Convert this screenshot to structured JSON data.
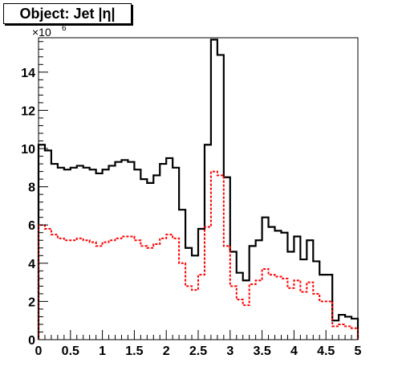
{
  "chart_data": {
    "type": "histogram",
    "title": "Object: Jet |η|",
    "xlabel": "",
    "ylabel": "",
    "xlim": [
      0,
      5
    ],
    "ylim": [
      0,
      15.8
    ],
    "y_multiplier_label": "×10",
    "y_multiplier_exponent": "6",
    "x_ticks": [
      "0",
      "0.5",
      "1",
      "1.5",
      "2",
      "2.5",
      "3",
      "3.5",
      "4",
      "4.5",
      "5"
    ],
    "y_ticks": [
      "0",
      "2",
      "4",
      "6",
      "8",
      "10",
      "12",
      "14"
    ],
    "bin_width": 0.1,
    "series": [
      {
        "style": "solid",
        "color": "#000000",
        "values": [
          10.2,
          9.9,
          9.2,
          9.0,
          8.9,
          9.0,
          9.1,
          9.0,
          8.9,
          8.7,
          8.9,
          9.1,
          9.3,
          9.4,
          9.3,
          8.9,
          8.4,
          8.2,
          8.6,
          9.2,
          9.5,
          9.0,
          6.8,
          4.8,
          4.4,
          5.8,
          10.2,
          15.7,
          14.9,
          8.5,
          4.6,
          3.5,
          3.1,
          4.9,
          5.2,
          6.4,
          5.9,
          5.7,
          5.6,
          4.6,
          5.4,
          4.2,
          5.2,
          4.1,
          3.4,
          3.4,
          1.0,
          1.3,
          1.2,
          1.1
        ]
      },
      {
        "style": "dashed",
        "color": "#ff0000",
        "values": [
          6.0,
          5.8,
          5.5,
          5.3,
          5.2,
          5.2,
          5.3,
          5.2,
          5.1,
          4.9,
          5.1,
          5.2,
          5.3,
          5.4,
          5.4,
          5.2,
          4.9,
          4.8,
          5.0,
          5.3,
          5.5,
          5.3,
          4.0,
          2.8,
          2.6,
          3.4,
          5.9,
          8.8,
          8.6,
          4.9,
          2.8,
          2.1,
          1.8,
          2.9,
          3.1,
          3.7,
          3.4,
          3.3,
          3.2,
          2.7,
          3.1,
          2.5,
          3.0,
          2.4,
          2.0,
          2.0,
          0.7,
          0.8,
          0.7,
          0.6
        ]
      }
    ]
  }
}
